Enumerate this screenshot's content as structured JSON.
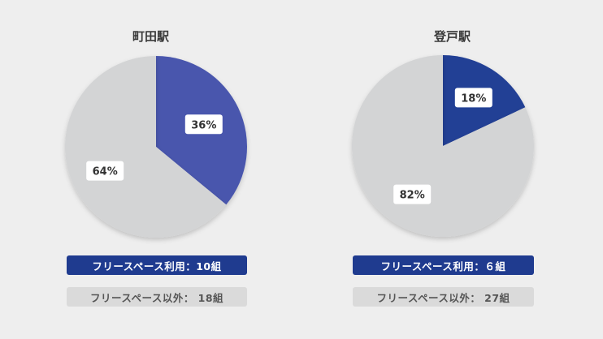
{
  "chart_data": [
    {
      "type": "pie",
      "title": "町田駅",
      "slices": [
        {
          "label": "36%",
          "value": 36,
          "color": "#4a57ad"
        },
        {
          "label": "64%",
          "value": 64,
          "color": "#d3d4d5"
        }
      ],
      "legend": [
        {
          "text": "フリースペース利用：10組",
          "color": "#1f3b8f"
        },
        {
          "text": "フリースペース以外： 18組",
          "color": "#dadada"
        }
      ]
    },
    {
      "type": "pie",
      "title": "登戸駅",
      "slices": [
        {
          "label": "18%",
          "value": 18,
          "color": "#233f95"
        },
        {
          "label": "82%",
          "value": 82,
          "color": "#d3d4d5"
        }
      ],
      "legend": [
        {
          "text": "フリースペース利用：６組",
          "color": "#1f3b8f"
        },
        {
          "text": "フリースペース以外： 27組",
          "color": "#dadada"
        }
      ]
    }
  ]
}
